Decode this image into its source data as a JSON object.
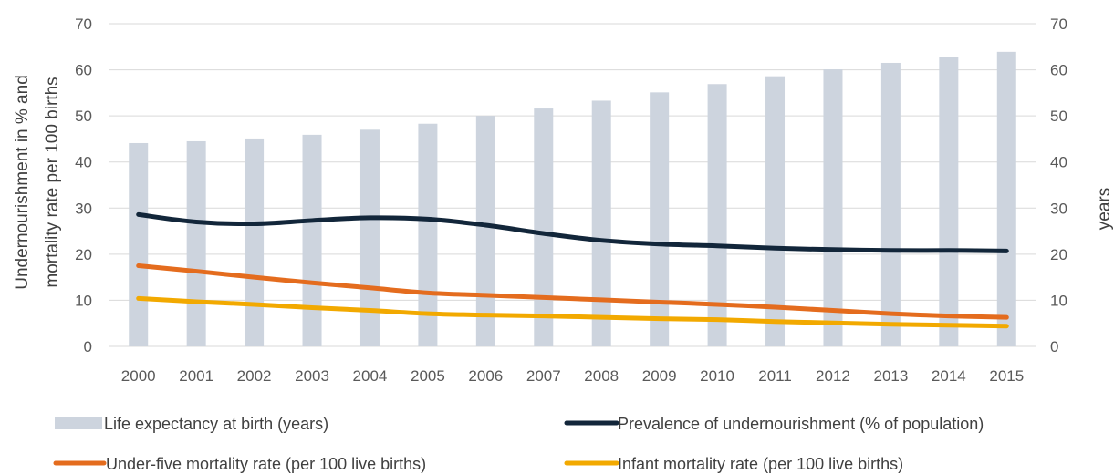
{
  "chart_data": {
    "type": "bar",
    "categories": [
      "2000",
      "2001",
      "2002",
      "2003",
      "2004",
      "2005",
      "2006",
      "2007",
      "2008",
      "2009",
      "2010",
      "2011",
      "2012",
      "2013",
      "2014",
      "2015"
    ],
    "series": [
      {
        "name": "Life expectancy at birth (years)",
        "kind": "bar",
        "axis": "right",
        "color": "#cdd4de",
        "values": [
          44.1,
          44.5,
          45.1,
          45.9,
          47.0,
          48.3,
          50.0,
          51.6,
          53.3,
          55.1,
          56.9,
          58.6,
          60.1,
          61.5,
          62.8,
          63.9
        ]
      },
      {
        "name": "Prevalence of undernourishment (% of population)",
        "kind": "line",
        "axis": "left",
        "color": "#12263a",
        "values": [
          28.6,
          27.0,
          26.6,
          27.3,
          27.9,
          27.6,
          26.3,
          24.5,
          23.0,
          22.2,
          21.8,
          21.3,
          21.0,
          20.8,
          20.8,
          20.7
        ]
      },
      {
        "name": "Under-five mortality rate (per 100 live births)",
        "kind": "line",
        "axis": "left",
        "color": "#e46c1e",
        "values": [
          17.5,
          16.3,
          15.0,
          13.8,
          12.7,
          11.6,
          11.1,
          10.6,
          10.1,
          9.6,
          9.1,
          8.5,
          7.8,
          7.1,
          6.6,
          6.3
        ]
      },
      {
        "name": "Infant mortality rate (per 100 live births)",
        "kind": "line",
        "axis": "left",
        "color": "#f2a900",
        "values": [
          10.4,
          9.7,
          9.1,
          8.4,
          7.8,
          7.1,
          6.8,
          6.6,
          6.3,
          6.0,
          5.8,
          5.4,
          5.1,
          4.8,
          4.6,
          4.4
        ]
      }
    ],
    "ylabel": "Undernourishment in % and mortality rate per 100 births",
    "ylabel_lines": [
      "Undernourishment in %  and",
      "mortality rate per 100 births"
    ],
    "y2label": "years",
    "ylim": [
      0,
      70
    ],
    "y2lim": [
      0,
      70
    ],
    "yticks": [
      "0",
      "10",
      "20",
      "30",
      "40",
      "50",
      "60",
      "70"
    ],
    "y2ticks": [
      "0",
      "10",
      "20",
      "30",
      "40",
      "50",
      "60",
      "70"
    ],
    "grid": true,
    "legend_position": "bottom"
  }
}
